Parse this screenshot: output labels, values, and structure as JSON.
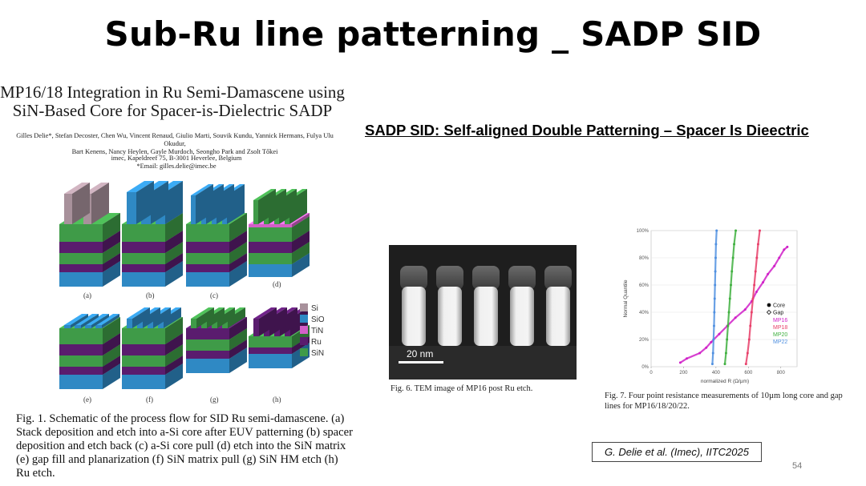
{
  "slide": {
    "title": "Sub-Ru line patterning _ SADP SID",
    "subtitle": "SADP SID: Self-aligned Double Patterning – Spacer Is Dieectric",
    "page_number": "54",
    "citation": "G. Delie et al. (Imec), IITC2025"
  },
  "paper": {
    "title_line1": "MP16/18 Integration in Ru Semi-Damascene using",
    "title_line2": "SiN-Based Core for Spacer-is-Dielectric SADP",
    "authors_line1": "Gilles Delie*, Stefan Decoster, Chen Wu, Vincent Renaud, Giulio Marti, Souvik Kundu, Yannick Hermans, Fulya Ulu Okudur,",
    "authors_line2": "Bart Kenens, Nancy Heylen, Gayle Murdoch, Seongho Park and Zsolt Tőkei",
    "affiliation": "imec, Kapeldreef 75, B-3001 Heverlee, Belgium",
    "email": "*Email: gilles.delie@imec.be"
  },
  "figure1": {
    "sub_labels": [
      "(a)",
      "(b)",
      "(c)",
      "(d)",
      "(e)",
      "(f)",
      "(g)",
      "(h)"
    ],
    "legend": [
      {
        "label": "Si",
        "color": "#a8919b"
      },
      {
        "label": "SiO₂",
        "color": "#2f89c4"
      },
      {
        "label": "TiN",
        "color": "#d35fc8"
      },
      {
        "label": "Ru",
        "color": "#5a1c6e"
      },
      {
        "label": "SiN",
        "color": "#3f9b48"
      }
    ],
    "caption": "Fig. 1. Schematic of the process flow for SID Ru semi-damascene. (a) Stack deposition and etch into a-Si core after EUV patterning (b) spacer deposition and etch back (c) a-Si core pull (d) etch into the SiN matrix (e) gap fill and planarization (f) SiN matrix pull (g) SiN HM etch (h) Ru etch."
  },
  "figure6": {
    "scale_bar_label": "20 nm",
    "caption": "Fig. 6. TEM image of MP16 post Ru etch."
  },
  "figure7": {
    "caption": "Fig. 7. Four point resistance measurements of 10µm long core and gap lines for MP16/18/20/22."
  },
  "chart_data": {
    "type": "scatter",
    "xlabel": "normalized R (Ω/µm)",
    "ylabel": "Normal Quantile",
    "xlim": [
      0,
      900
    ],
    "ylim": [
      0,
      100
    ],
    "x_ticks": [
      0,
      200,
      400,
      600,
      800
    ],
    "y_ticks": [
      "0%",
      "20%",
      "40%",
      "60%",
      "80%",
      "100%"
    ],
    "legend_markers": [
      {
        "label": "Core",
        "marker": "filled-circle"
      },
      {
        "label": "Gap",
        "marker": "open-diamond"
      }
    ],
    "series": [
      {
        "name": "MP16",
        "color": "#d020c8",
        "points": [
          [
            180,
            3
          ],
          [
            220,
            6
          ],
          [
            300,
            10
          ],
          [
            340,
            14
          ],
          [
            370,
            18
          ],
          [
            420,
            24
          ],
          [
            470,
            30
          ],
          [
            520,
            36
          ],
          [
            580,
            42
          ],
          [
            620,
            48
          ],
          [
            650,
            55
          ],
          [
            690,
            62
          ],
          [
            720,
            68
          ],
          [
            760,
            74
          ],
          [
            790,
            80
          ],
          [
            820,
            86
          ],
          [
            840,
            88
          ]
        ]
      },
      {
        "name": "MP18",
        "color": "#e8406a",
        "points": [
          [
            585,
            2
          ],
          [
            595,
            10
          ],
          [
            605,
            20
          ],
          [
            612,
            30
          ],
          [
            620,
            40
          ],
          [
            628,
            50
          ],
          [
            636,
            60
          ],
          [
            644,
            70
          ],
          [
            652,
            80
          ],
          [
            660,
            90
          ],
          [
            670,
            100
          ]
        ]
      },
      {
        "name": "MP20",
        "color": "#40b040",
        "points": [
          [
            455,
            2
          ],
          [
            462,
            10
          ],
          [
            468,
            20
          ],
          [
            474,
            30
          ],
          [
            480,
            40
          ],
          [
            486,
            50
          ],
          [
            492,
            60
          ],
          [
            498,
            70
          ],
          [
            505,
            80
          ],
          [
            512,
            90
          ],
          [
            522,
            100
          ]
        ]
      },
      {
        "name": "MP22",
        "color": "#5090e0",
        "points": [
          [
            378,
            2
          ],
          [
            382,
            10
          ],
          [
            385,
            20
          ],
          [
            388,
            30
          ],
          [
            390,
            40
          ],
          [
            392,
            50
          ],
          [
            394,
            60
          ],
          [
            396,
            70
          ],
          [
            398,
            80
          ],
          [
            400,
            90
          ],
          [
            404,
            100
          ]
        ]
      }
    ]
  }
}
